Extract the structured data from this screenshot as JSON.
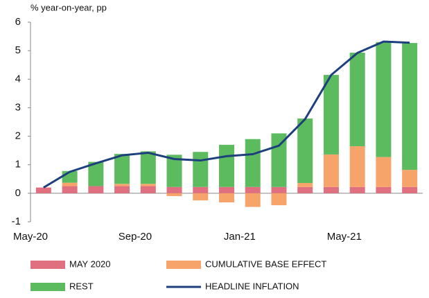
{
  "chart_data": {
    "type": "stacked_bar_line",
    "ylabel": "% year-on-year, pp",
    "categories": [
      "May-20",
      null,
      null,
      null,
      "Sep-20",
      null,
      null,
      null,
      "Jan-21",
      null,
      null,
      null,
      "May-21",
      null,
      null
    ],
    "series": [
      {
        "name": "MAY 2020",
        "color": "#e0707f",
        "kind": "bar",
        "values": [
          0.2,
          0.25,
          0.25,
          0.25,
          0.25,
          0.22,
          0.22,
          0.22,
          0.22,
          0.22,
          0.22,
          0.22,
          0.22,
          0.22,
          0.22
        ]
      },
      {
        "name": "CUMULATIVE BASE EFFECT",
        "color": "#f7a46a",
        "kind": "bar",
        "values": [
          0,
          0.12,
          0,
          0.08,
          0.08,
          -0.1,
          -0.25,
          -0.32,
          -0.48,
          -0.42,
          0.14,
          1.14,
          1.43,
          1.05,
          0.6
        ]
      },
      {
        "name": "REST",
        "color": "#5cbb5e",
        "kind": "bar",
        "values": [
          0,
          0.41,
          0.85,
          1.05,
          1.14,
          1.13,
          1.23,
          1.48,
          1.68,
          1.88,
          2.26,
          2.79,
          3.28,
          4.03,
          4.45
        ]
      },
      {
        "name": "HEADLINE INFLATION",
        "color": "#1d3f7e",
        "kind": "line",
        "values": [
          0.2,
          0.75,
          1.05,
          1.33,
          1.42,
          1.2,
          1.15,
          1.3,
          1.37,
          1.67,
          2.6,
          4.15,
          4.92,
          5.32,
          5.28
        ]
      }
    ],
    "ylim": [
      -1,
      6
    ],
    "yticks": [
      -1,
      0,
      1,
      2,
      3,
      4,
      5,
      6
    ],
    "grid": false,
    "legend": "bottom"
  }
}
